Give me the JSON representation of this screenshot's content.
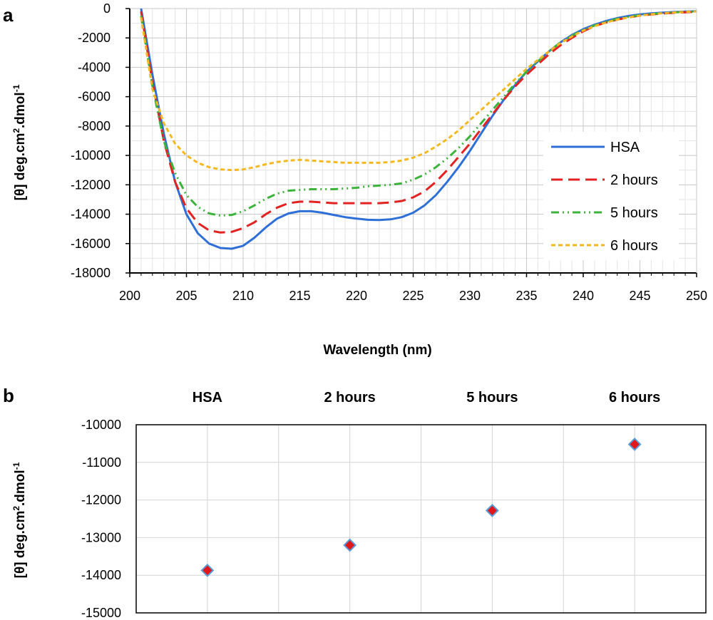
{
  "panel_a_label": "a",
  "panel_b_label": "b",
  "chart_data": [
    {
      "type": "line",
      "xlabel": "Wavelength (nm)",
      "ylabel_parts": [
        "[θ] deg.cm",
        "2",
        ".dmol",
        "-1"
      ],
      "xlim": [
        200,
        250
      ],
      "ylim": [
        -18000,
        0
      ],
      "xticks": [
        "200",
        "205",
        "210",
        "215",
        "220",
        "225",
        "230",
        "235",
        "240",
        "245",
        "250"
      ],
      "yticks": [
        "0",
        "-2000",
        "-4000",
        "-6000",
        "-8000",
        "-10000",
        "-12000",
        "-14000",
        "-16000",
        "-18000"
      ],
      "grid": true,
      "legend": "right",
      "x": [
        201,
        202,
        203,
        204,
        205,
        206,
        207,
        208,
        209,
        210,
        211,
        212,
        213,
        214,
        215,
        216,
        217,
        218,
        219,
        220,
        221,
        222,
        223,
        224,
        225,
        226,
        227,
        228,
        229,
        230,
        231,
        232,
        233,
        234,
        235,
        236,
        237,
        238,
        239,
        240,
        241,
        242,
        243,
        244,
        245,
        246,
        247,
        248,
        249,
        250
      ],
      "series": [
        {
          "name": "HSA",
          "color": "#2E6FD8",
          "dash": "solid",
          "values": [
            0,
            -4500,
            -8500,
            -11800,
            -14000,
            -15300,
            -16000,
            -16300,
            -16350,
            -16150,
            -15600,
            -14900,
            -14300,
            -13950,
            -13800,
            -13800,
            -13900,
            -14050,
            -14200,
            -14300,
            -14380,
            -14400,
            -14350,
            -14200,
            -13900,
            -13400,
            -12700,
            -11800,
            -10800,
            -9700,
            -8500,
            -7300,
            -6200,
            -5200,
            -4300,
            -3600,
            -2900,
            -2300,
            -1800,
            -1400,
            -1100,
            -850,
            -650,
            -500,
            -400,
            -330,
            -280,
            -240,
            -210,
            -180
          ]
        },
        {
          "name": "2 hours",
          "color": "#E32222",
          "dash": "long",
          "values": [
            -200,
            -5000,
            -9000,
            -11800,
            -13600,
            -14600,
            -15100,
            -15250,
            -15200,
            -14950,
            -14550,
            -14000,
            -13550,
            -13250,
            -13150,
            -13150,
            -13200,
            -13250,
            -13250,
            -13250,
            -13250,
            -13250,
            -13200,
            -13100,
            -12850,
            -12450,
            -11800,
            -11000,
            -10100,
            -9200,
            -8200,
            -7200,
            -6200,
            -5300,
            -4500,
            -3800,
            -3100,
            -2500,
            -2000,
            -1550,
            -1200,
            -950,
            -750,
            -600,
            -480,
            -400,
            -340,
            -290,
            -250,
            -220
          ]
        },
        {
          "name": "5 hours",
          "color": "#3CB43C",
          "dash": "dashdotdot",
          "values": [
            -500,
            -5300,
            -9000,
            -11200,
            -12700,
            -13500,
            -13950,
            -14100,
            -14050,
            -13800,
            -13400,
            -12950,
            -12600,
            -12400,
            -12350,
            -12300,
            -12300,
            -12300,
            -12250,
            -12200,
            -12100,
            -12050,
            -12000,
            -11900,
            -11650,
            -11300,
            -10800,
            -10200,
            -9500,
            -8700,
            -7800,
            -6900,
            -6000,
            -5100,
            -4300,
            -3600,
            -2900,
            -2300,
            -1850,
            -1450,
            -1150,
            -900,
            -700,
            -560,
            -450,
            -370,
            -310,
            -260,
            -220,
            -190
          ]
        },
        {
          "name": "6 hours",
          "color": "#F5B820",
          "dash": "short",
          "values": [
            -600,
            -5500,
            -7800,
            -9200,
            -10000,
            -10500,
            -10800,
            -10950,
            -11000,
            -10950,
            -10800,
            -10600,
            -10450,
            -10350,
            -10300,
            -10350,
            -10400,
            -10450,
            -10500,
            -10500,
            -10500,
            -10500,
            -10450,
            -10350,
            -10150,
            -9850,
            -9400,
            -8900,
            -8300,
            -7600,
            -6900,
            -6200,
            -5500,
            -4800,
            -4100,
            -3500,
            -2900,
            -2350,
            -1900,
            -1500,
            -1200,
            -950,
            -750,
            -600,
            -480,
            -390,
            -320,
            -270,
            -230,
            -200
          ]
        }
      ]
    },
    {
      "type": "scatter",
      "categories": [
        "HSA",
        "2 hours",
        "5 hours",
        "6 hours"
      ],
      "values": [
        -13870,
        -13200,
        -12280,
        -10520
      ],
      "ylabel_parts": [
        "[θ] deg.cm",
        "2",
        ".dmol",
        "-1"
      ],
      "ylim": [
        -15000,
        -10000
      ],
      "yticks": [
        "-10000",
        "-11000",
        "-12000",
        "-13000",
        "-14000",
        "-15000"
      ],
      "grid": true,
      "marker": "diamond",
      "marker_fill": "#E0181B",
      "marker_edge": "#5B9BD5"
    }
  ]
}
